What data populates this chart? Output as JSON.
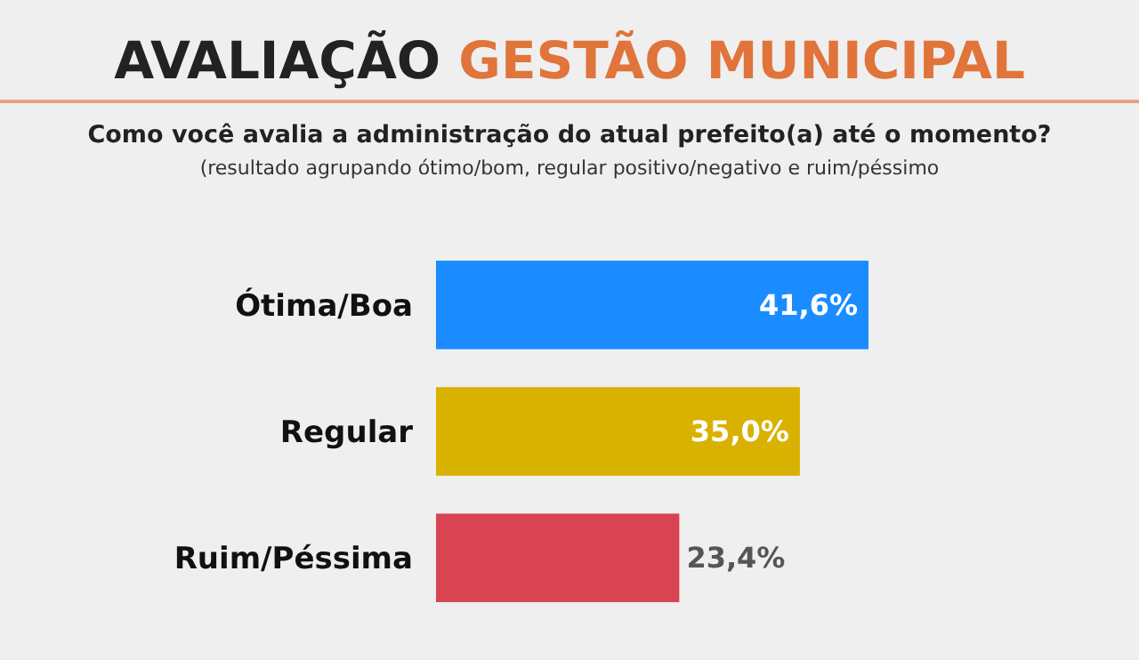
{
  "chart_data": {
    "type": "bar",
    "orientation": "horizontal",
    "title": "AVALIAÇÃO GESTÃO MUNICIPAL",
    "subtitle": "Como você avalia a administração do atual prefeito(a)  até o momento?",
    "annotations": [
      "(resultado agrupando ótimo/bom, regular positivo/negativo e ruim/péssimo"
    ],
    "categories": [
      "Ótima/Boa",
      "Regular",
      "Ruim/Péssima"
    ],
    "values": [
      41.6,
      35.0,
      23.4
    ],
    "value_labels": [
      "41,6%",
      "35,0%",
      "23,4%"
    ],
    "colors": [
      "#1a8cff",
      "#d9b100",
      "#d94452"
    ]
  }
}
